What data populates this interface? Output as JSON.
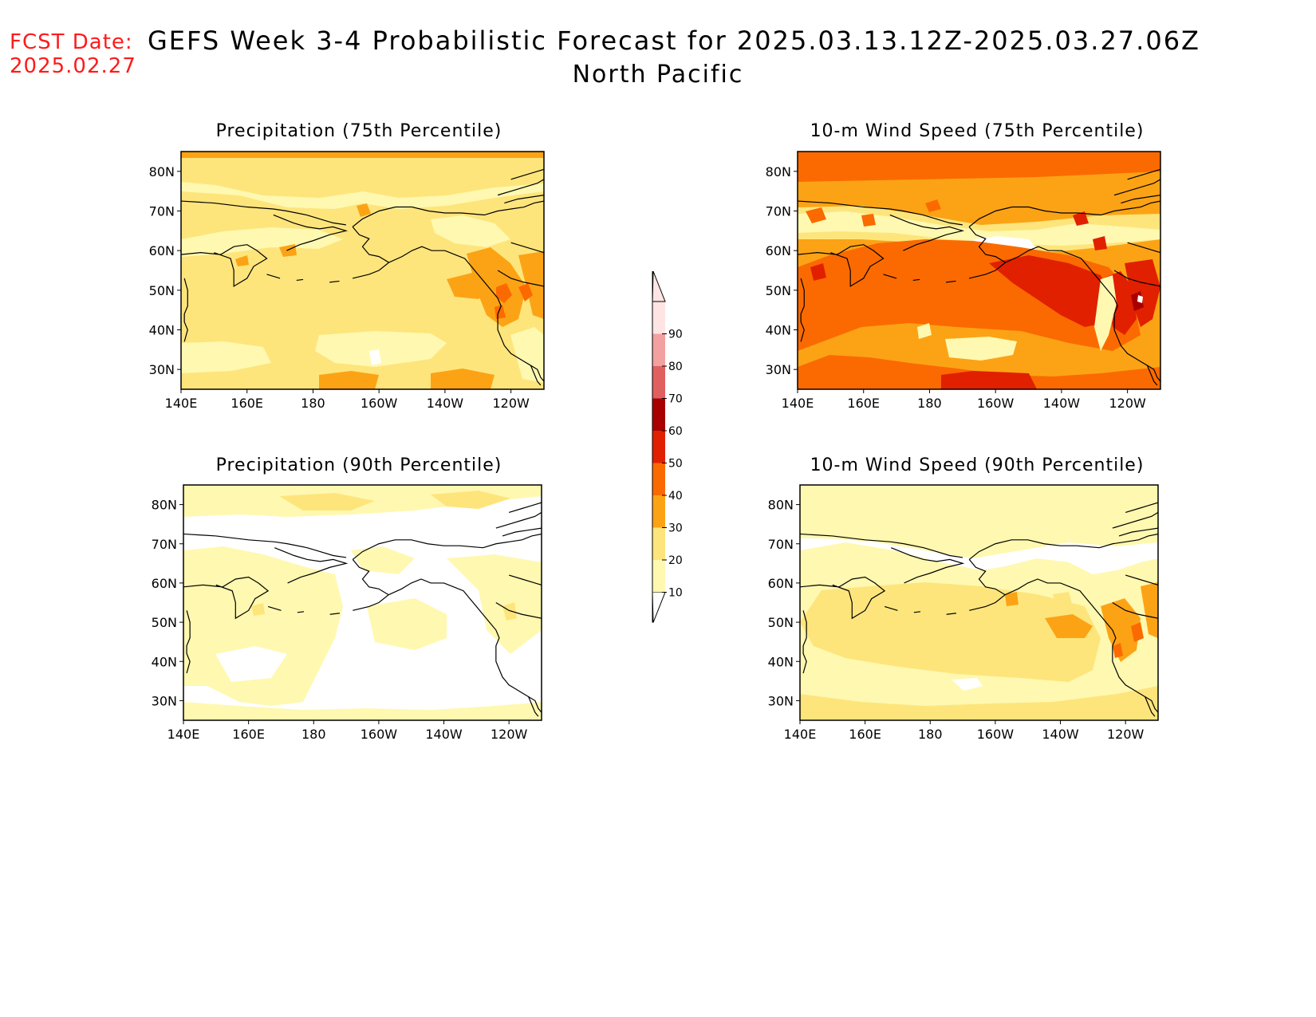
{
  "header": {
    "fcst_label": "FCST Date:",
    "fcst_date": "2025.02.27",
    "title": "GEFS Week 3-4 Probabilistic Forecast for 2025.03.13.12Z-2025.03.27.06Z",
    "region": "North Pacific"
  },
  "colors": {
    "c10": "#fff8b0",
    "c20": "#fde57c",
    "c30": "#fca315",
    "c40": "#fb6a00",
    "c50": "#e12000",
    "c60": "#a80000",
    "c70": "#e06060",
    "c80": "#f3a0a0",
    "c90": "#ffe4e4",
    "coast": "#000000"
  },
  "colorbar": {
    "labels": [
      "10",
      "20",
      "30",
      "40",
      "50",
      "60",
      "70",
      "80",
      "90"
    ]
  },
  "panels": [
    {
      "id": "precip75",
      "title": "Precipitation (75th Percentile)",
      "lon_labels": [
        "140E",
        "160E",
        "180",
        "160W",
        "140W",
        "120W"
      ],
      "lat_labels": [
        "30N",
        "40N",
        "50N",
        "60N",
        "70N",
        "80N"
      ]
    },
    {
      "id": "wind75",
      "title": "10-m Wind Speed (75th Percentile)",
      "lon_labels": [
        "140E",
        "160E",
        "180",
        "160W",
        "140W",
        "120W"
      ],
      "lat_labels": [
        "30N",
        "40N",
        "50N",
        "60N",
        "70N",
        "80N"
      ]
    },
    {
      "id": "precip90",
      "title": "Precipitation (90th Percentile)",
      "lon_labels": [
        "140E",
        "160E",
        "180",
        "160W",
        "140W",
        "120W"
      ],
      "lat_labels": [
        "30N",
        "40N",
        "50N",
        "60N",
        "70N",
        "80N"
      ]
    },
    {
      "id": "wind90",
      "title": "10-m Wind Speed (90th Percentile)",
      "lon_labels": [
        "140E",
        "160E",
        "180",
        "160W",
        "140W",
        "120W"
      ],
      "lat_labels": [
        "30N",
        "40N",
        "50N",
        "60N",
        "70N",
        "80N"
      ]
    }
  ]
}
